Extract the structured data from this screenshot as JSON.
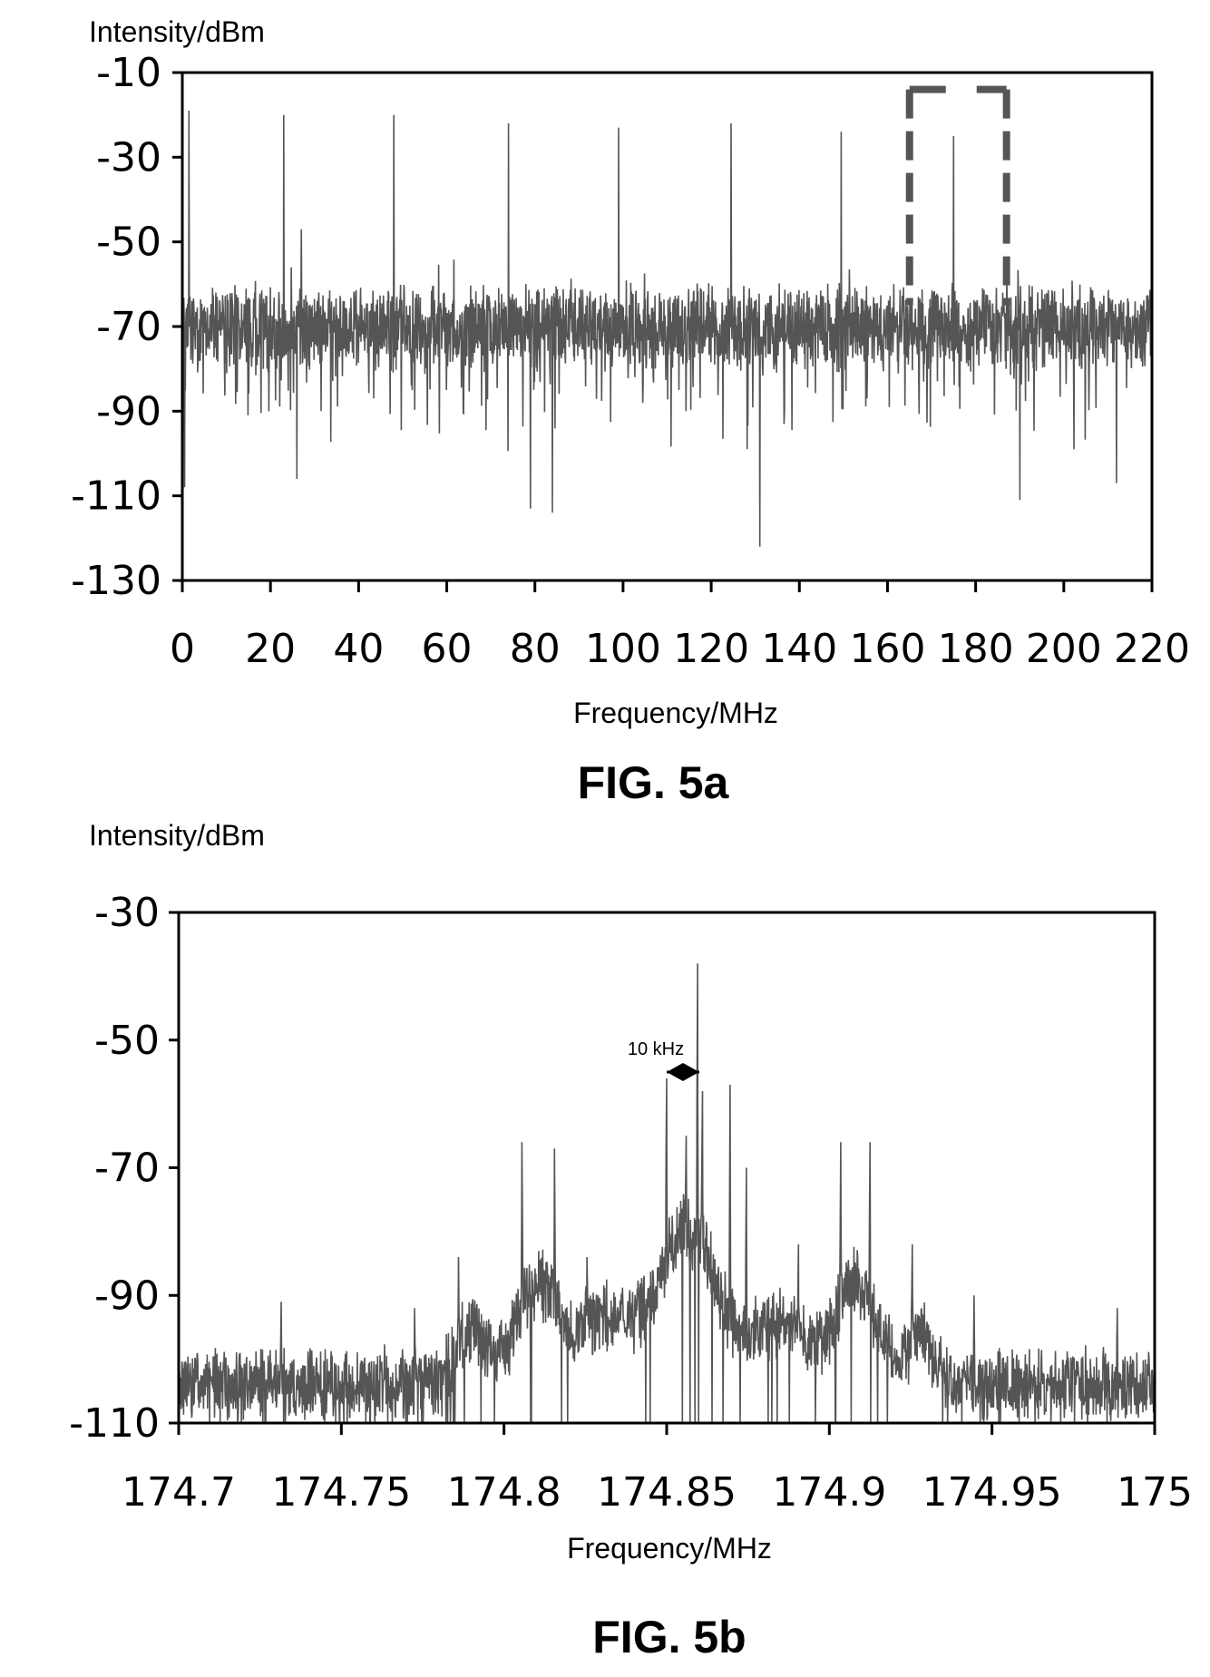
{
  "chart_data": [
    {
      "type": "line",
      "caption": "FIG. 5a",
      "xlabel": "Frequency/MHz",
      "ylabel": "Intensity/dBm",
      "xlim": [
        0,
        220
      ],
      "ylim": [
        -130,
        -10
      ],
      "x_ticks": [
        0,
        20,
        40,
        60,
        80,
        100,
        120,
        140,
        160,
        180,
        200,
        220
      ],
      "x_tick_labels": [
        "0",
        "20",
        "40",
        "60",
        "80",
        "100",
        "120",
        "140",
        "160",
        "180",
        "200",
        "220"
      ],
      "y_ticks": [
        -10,
        -30,
        -50,
        -70,
        -90,
        -110,
        -130
      ],
      "y_tick_labels": [
        "-10",
        "-30",
        "-50",
        "-70",
        "-90",
        "-110",
        "-130"
      ],
      "grid": false,
      "line_color": "#555555",
      "series": [
        {
          "noise_floor_dbm": -70,
          "noise_band_dbm": [
            -85,
            -60
          ],
          "peaks": [
            {
              "x": 1.5,
              "y": -19
            },
            {
              "x": 23,
              "y": -20
            },
            {
              "x": 27,
              "y": -47
            },
            {
              "x": 48,
              "y": -20
            },
            {
              "x": 74,
              "y": -22
            },
            {
              "x": 99,
              "y": -23
            },
            {
              "x": 124.5,
              "y": -22
            },
            {
              "x": 149.5,
              "y": -24
            },
            {
              "x": 175,
              "y": -25
            }
          ],
          "dips": [
            {
              "x": 0.5,
              "y": -108
            },
            {
              "x": 26,
              "y": -106
            },
            {
              "x": 79,
              "y": -113
            },
            {
              "x": 84,
              "y": -114
            },
            {
              "x": 131,
              "y": -122
            },
            {
              "x": 190,
              "y": -111
            },
            {
              "x": 212,
              "y": -107
            }
          ]
        }
      ],
      "highlight_box": {
        "x_range": [
          165,
          187
        ],
        "y_range": [
          -65,
          -14
        ],
        "style": "dashed"
      }
    },
    {
      "type": "line",
      "caption": "FIG. 5b",
      "xlabel": "Frequency/MHz",
      "ylabel": "Intensity/dBm",
      "xlim": [
        174.7,
        175
      ],
      "ylim": [
        -110,
        -30
      ],
      "x_ticks": [
        174.7,
        174.75,
        174.8,
        174.85,
        174.9,
        174.95,
        175
      ],
      "x_tick_labels": [
        "174.7",
        "174.75",
        "174.8",
        "174.85",
        "174.9",
        "174.95",
        "175"
      ],
      "y_ticks": [
        -30,
        -50,
        -70,
        -90,
        -110
      ],
      "y_tick_labels": [
        "-30",
        "-50",
        "-70",
        "-90",
        "-110"
      ],
      "grid": false,
      "line_color": "#555555",
      "series": [
        {
          "noise_floor_dbm": -104,
          "peaks": [
            {
              "x": 174.8055,
              "y": -66
            },
            {
              "x": 174.8155,
              "y": -67
            },
            {
              "x": 174.8255,
              "y": -84
            },
            {
              "x": 174.85,
              "y": -56
            },
            {
              "x": 174.856,
              "y": -65
            },
            {
              "x": 174.8595,
              "y": -38
            },
            {
              "x": 174.861,
              "y": -58
            },
            {
              "x": 174.8695,
              "y": -57
            },
            {
              "x": 174.8745,
              "y": -70
            },
            {
              "x": 174.8905,
              "y": -82
            },
            {
              "x": 174.9035,
              "y": -66
            },
            {
              "x": 174.9125,
              "y": -66
            },
            {
              "x": 174.9255,
              "y": -82
            },
            {
              "x": 174.786,
              "y": -84
            },
            {
              "x": 174.7725,
              "y": -92
            },
            {
              "x": 174.7315,
              "y": -91
            },
            {
              "x": 174.9445,
              "y": -90
            },
            {
              "x": 174.9885,
              "y": -92
            }
          ]
        }
      ],
      "annotation": {
        "text": "10 kHz",
        "arrow_x": [
          174.85,
          174.86
        ],
        "arrow_y": -55
      }
    }
  ]
}
